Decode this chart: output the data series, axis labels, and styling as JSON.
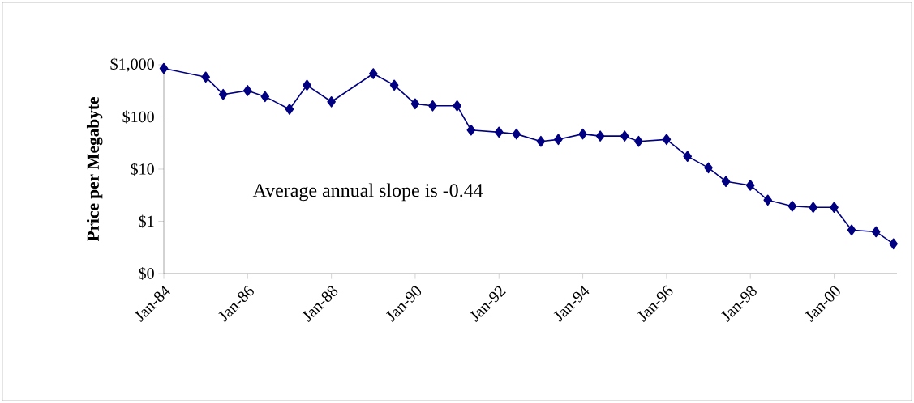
{
  "chart_data": {
    "type": "line",
    "ylabel": "Price per Megabyte",
    "log": "y",
    "marker": "diamond",
    "line_style": "solid",
    "annotations": [
      "Average annual slope is -0.44"
    ],
    "x": [
      "1984-01",
      "1985-01",
      "1985-06",
      "1986-01",
      "1986-06",
      "1987-01",
      "1987-06",
      "1988-01",
      "1989-01",
      "1989-07",
      "1990-01",
      "1990-06",
      "1991-01",
      "1991-05",
      "1992-01",
      "1992-06",
      "1993-01",
      "1993-06",
      "1994-01",
      "1994-06",
      "1995-01",
      "1995-05",
      "1996-01",
      "1996-07",
      "1997-01",
      "1997-06",
      "1998-01",
      "1998-06",
      "1999-01",
      "1999-07",
      "2000-01",
      "2000-06",
      "2001-01",
      "2001-06"
    ],
    "series": [
      {
        "color": "#000080",
        "values": [
          850,
          580,
          270,
          320,
          245,
          140,
          405,
          195,
          675,
          405,
          178,
          163,
          163,
          56,
          51,
          47,
          34,
          37,
          47,
          43,
          43,
          34,
          37,
          17.6,
          10.6,
          5.8,
          4.9,
          2.55,
          1.95,
          1.85,
          1.85,
          0.68,
          0.63,
          0.37
        ]
      }
    ],
    "xlim": [
      "1984-01",
      "2001-07"
    ],
    "xticks": [
      {
        "value": "1984-01",
        "label": "Jan-84"
      },
      {
        "value": "1986-01",
        "label": "Jan-86"
      },
      {
        "value": "1988-01",
        "label": "Jan-88"
      },
      {
        "value": "1990-01",
        "label": "Jan-90"
      },
      {
        "value": "1992-01",
        "label": "Jan-92"
      },
      {
        "value": "1994-01",
        "label": "Jan-94"
      },
      {
        "value": "1996-01",
        "label": "Jan-96"
      },
      {
        "value": "1998-01",
        "label": "Jan-98"
      },
      {
        "value": "2000-01",
        "label": "Jan-00"
      }
    ],
    "ylim": [
      0.1,
      1000
    ],
    "yticks": [
      {
        "value": 0.1,
        "label": "$0"
      },
      {
        "value": 1,
        "label": "$1"
      },
      {
        "value": 10,
        "label": "$10"
      },
      {
        "value": 100,
        "label": "$100"
      },
      {
        "value": 1000,
        "label": "$1,000"
      }
    ]
  }
}
